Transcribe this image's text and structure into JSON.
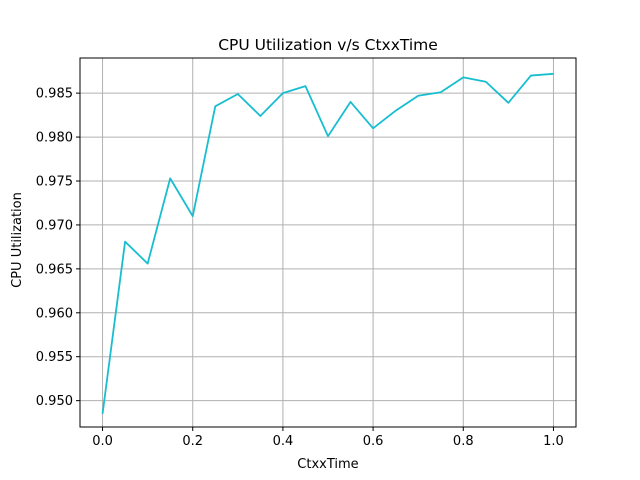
{
  "chart_data": {
    "type": "line",
    "title": "CPU Utilization v/s CtxxTime",
    "xlabel": "CtxxTime",
    "ylabel": "CPU Utilization",
    "xlim": [
      -0.05,
      1.05
    ],
    "ylim": [
      0.947,
      0.989
    ],
    "xticks": [
      0.0,
      0.2,
      0.4,
      0.6,
      0.8,
      1.0
    ],
    "xtick_labels": [
      "0.0",
      "0.2",
      "0.4",
      "0.6",
      "0.8",
      "1.0"
    ],
    "yticks": [
      0.95,
      0.955,
      0.96,
      0.965,
      0.97,
      0.975,
      0.98,
      0.985
    ],
    "ytick_labels": [
      "0.950",
      "0.955",
      "0.960",
      "0.965",
      "0.970",
      "0.975",
      "0.980",
      "0.985"
    ],
    "grid": true,
    "line_color": "#17becf",
    "x": [
      0.0,
      0.05,
      0.1,
      0.15,
      0.2,
      0.25,
      0.3,
      0.35,
      0.4,
      0.45,
      0.5,
      0.55,
      0.6,
      0.65,
      0.7,
      0.75,
      0.8,
      0.85,
      0.9,
      0.95,
      1.0
    ],
    "y": [
      0.9485,
      0.9681,
      0.9656,
      0.9753,
      0.971,
      0.9835,
      0.9849,
      0.9824,
      0.985,
      0.9858,
      0.9801,
      0.984,
      0.981,
      0.983,
      0.9847,
      0.9851,
      0.9868,
      0.9863,
      0.9839,
      0.987,
      0.9872
    ]
  }
}
